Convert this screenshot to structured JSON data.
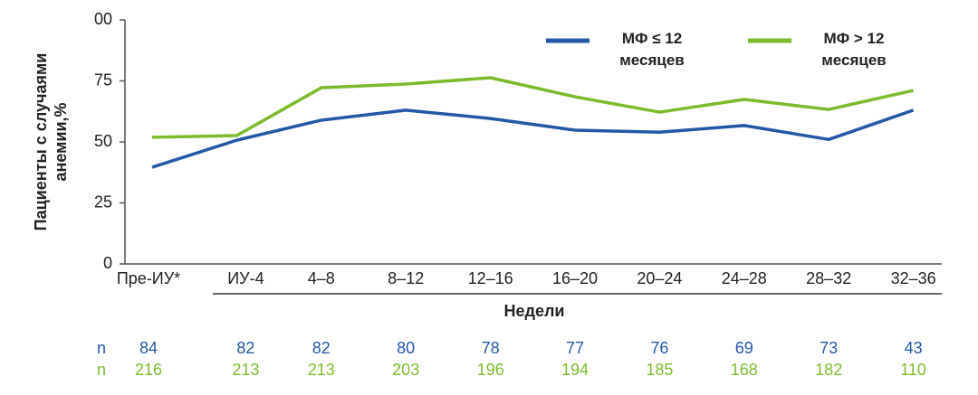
{
  "chart_data": {
    "type": "line",
    "ylabel": [
      "Пациенты с случаями",
      "анемии,%"
    ],
    "xlabel": "Недели",
    "categories": [
      "Пре-ИУ*",
      "ИУ-4",
      "4–8",
      "8–12",
      "12–16",
      "16–20",
      "20–24",
      "24–28",
      "28–32",
      "32–36"
    ],
    "series": [
      {
        "name": "МФ ≤ 12 месяцев",
        "color": "#2458a6",
        "values": [
          39.6,
          50.7,
          58.9,
          63,
          59.6,
          54.8,
          54,
          56.7,
          51,
          63
        ]
      },
      {
        "name": "МФ > 12 месяцев",
        "color": "#7dbb2e",
        "values": [
          51.9,
          52.6,
          72.2,
          73.7,
          76.3,
          68.5,
          62.2,
          67.4,
          63.3,
          71.1
        ]
      }
    ],
    "ylim": [
      0,
      100
    ],
    "yticks": [
      0,
      25,
      50,
      75,
      {
        "value": 100,
        "label": "00"
      }
    ],
    "grid": false,
    "sample_sizes": [
      {
        "label": "n",
        "color": "#2458a6",
        "values": [
          84,
          82,
          82,
          80,
          78,
          77,
          76,
          69,
          73,
          43
        ]
      },
      {
        "label": "n",
        "color": "#7dbb2e",
        "values": [
          216,
          213,
          213,
          203,
          196,
          194,
          185,
          168,
          182,
          110
        ]
      }
    ]
  }
}
